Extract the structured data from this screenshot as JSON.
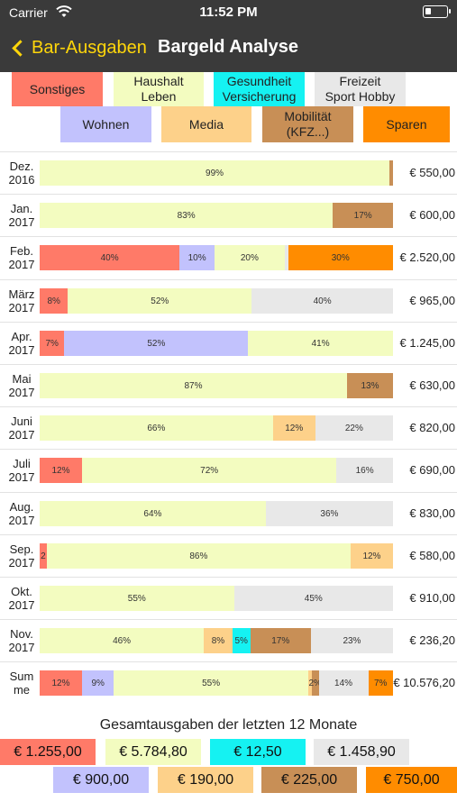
{
  "status": {
    "carrier": "Carrier",
    "time": "11:52 PM"
  },
  "nav": {
    "back_label": "Bar-Ausgaben",
    "title": "Bargeld Analyse"
  },
  "colors": {
    "sonstiges": "#ff7a68",
    "haushalt": "#f3fcc0",
    "gesundheit": "#15f2f2",
    "freizeit": "#e8e8e8",
    "wohnen": "#c2c2fd",
    "media": "#fdd18a",
    "mobilitaet": "#c88f56",
    "sparen": "#ff8c00",
    "navbar": "#3a3a3a",
    "accent": "#ffd60a"
  },
  "legend": [
    {
      "key": "sonstiges",
      "label": "Sonstiges"
    },
    {
      "key": "haushalt",
      "label": "Haushalt\nLeben"
    },
    {
      "key": "gesundheit",
      "label": "Gesundheit\nVersicherung"
    },
    {
      "key": "freizeit",
      "label": "Freizeit\nSport Hobby"
    },
    {
      "key": "wohnen",
      "label": "Wohnen"
    },
    {
      "key": "media",
      "label": "Media"
    },
    {
      "key": "mobilitaet",
      "label": "Mobilität\n(KFZ...)"
    },
    {
      "key": "sparen",
      "label": "Sparen"
    }
  ],
  "chart_data": {
    "type": "bar",
    "orientation": "horizontal-stacked-100",
    "categories": [
      "Dez.\n2016",
      "Jan.\n2017",
      "Feb.\n2017",
      "März\n2017",
      "Apr.\n2017",
      "Mai\n2017",
      "Juni\n2017",
      "Juli\n2017",
      "Aug.\n2017",
      "Sep.\n2017",
      "Okt.\n2017",
      "Nov.\n2017",
      "Sum\nme"
    ],
    "amounts": [
      "€ 550,00",
      "€ 600,00",
      "€ 2.520,00",
      "€ 965,00",
      "€ 1.245,00",
      "€ 630,00",
      "€ 820,00",
      "€ 690,00",
      "€ 830,00",
      "€ 580,00",
      "€ 910,00",
      "€ 236,20",
      "€ 10.576,20"
    ],
    "rows": [
      [
        {
          "key": "haushalt",
          "value": 99,
          "label": "99%"
        },
        {
          "key": "mobilitaet",
          "value": 1,
          "label": ""
        }
      ],
      [
        {
          "key": "haushalt",
          "value": 83,
          "label": "83%"
        },
        {
          "key": "mobilitaet",
          "value": 17,
          "label": "17%"
        }
      ],
      [
        {
          "key": "sonstiges",
          "value": 40,
          "label": "40%"
        },
        {
          "key": "wohnen",
          "value": 10,
          "label": "10%"
        },
        {
          "key": "haushalt",
          "value": 20,
          "label": "20%"
        },
        {
          "key": "freizeit",
          "value": 1,
          "label": ""
        },
        {
          "key": "sparen",
          "value": 30,
          "label": "30%"
        }
      ],
      [
        {
          "key": "sonstiges",
          "value": 8,
          "label": "8%"
        },
        {
          "key": "haushalt",
          "value": 52,
          "label": "52%"
        },
        {
          "key": "freizeit",
          "value": 40,
          "label": "40%"
        }
      ],
      [
        {
          "key": "sonstiges",
          "value": 7,
          "label": "7%"
        },
        {
          "key": "wohnen",
          "value": 52,
          "label": "52%"
        },
        {
          "key": "haushalt",
          "value": 41,
          "label": "41%"
        }
      ],
      [
        {
          "key": "haushalt",
          "value": 87,
          "label": "87%"
        },
        {
          "key": "mobilitaet",
          "value": 13,
          "label": "13%"
        }
      ],
      [
        {
          "key": "haushalt",
          "value": 66,
          "label": "66%"
        },
        {
          "key": "media",
          "value": 12,
          "label": "12%"
        },
        {
          "key": "freizeit",
          "value": 22,
          "label": "22%"
        }
      ],
      [
        {
          "key": "sonstiges",
          "value": 12,
          "label": "12%"
        },
        {
          "key": "haushalt",
          "value": 72,
          "label": "72%"
        },
        {
          "key": "freizeit",
          "value": 16,
          "label": "16%"
        }
      ],
      [
        {
          "key": "haushalt",
          "value": 64,
          "label": "64%"
        },
        {
          "key": "freizeit",
          "value": 36,
          "label": "36%"
        }
      ],
      [
        {
          "key": "sonstiges",
          "value": 2,
          "label": "2"
        },
        {
          "key": "haushalt",
          "value": 86,
          "label": "86%"
        },
        {
          "key": "media",
          "value": 12,
          "label": "12%"
        }
      ],
      [
        {
          "key": "haushalt",
          "value": 55,
          "label": "55%"
        },
        {
          "key": "freizeit",
          "value": 45,
          "label": "45%"
        }
      ],
      [
        {
          "key": "haushalt",
          "value": 46,
          "label": "46%"
        },
        {
          "key": "media",
          "value": 8,
          "label": "8%"
        },
        {
          "key": "gesundheit",
          "value": 5,
          "label": "5%"
        },
        {
          "key": "mobilitaet",
          "value": 17,
          "label": "17%"
        },
        {
          "key": "freizeit",
          "value": 23,
          "label": "23%"
        }
      ],
      [
        {
          "key": "sonstiges",
          "value": 12,
          "label": "12%"
        },
        {
          "key": "wohnen",
          "value": 9,
          "label": "9%"
        },
        {
          "key": "haushalt",
          "value": 55,
          "label": "55%"
        },
        {
          "key": "media",
          "value": 1,
          "label": ""
        },
        {
          "key": "mobilitaet",
          "value": 2,
          "label": "2%"
        },
        {
          "key": "freizeit",
          "value": 14,
          "label": "14%"
        },
        {
          "key": "sparen",
          "value": 7,
          "label": "7%"
        }
      ]
    ]
  },
  "totals": {
    "title": "Gesamtausgaben der letzten 12 Monate",
    "items": [
      {
        "key": "sonstiges",
        "value": "€ 1.255,00"
      },
      {
        "key": "haushalt",
        "value": "€ 5.784,80"
      },
      {
        "key": "gesundheit",
        "value": "€ 12,50"
      },
      {
        "key": "freizeit",
        "value": "€ 1.458,90"
      },
      {
        "key": "wohnen",
        "value": "€ 900,00"
      },
      {
        "key": "media",
        "value": "€ 190,00"
      },
      {
        "key": "mobilitaet",
        "value": "€ 225,00"
      },
      {
        "key": "sparen",
        "value": "€ 750,00"
      }
    ]
  }
}
